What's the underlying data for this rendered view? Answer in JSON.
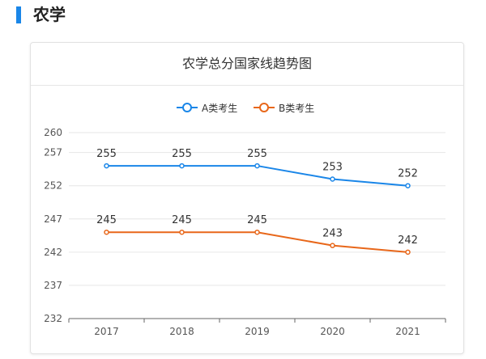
{
  "section": {
    "title": "农学",
    "accent_color": "#1a86e8"
  },
  "chart_data": {
    "type": "line",
    "title": "农学总分国家线趋势图",
    "categories": [
      "2017",
      "2018",
      "2019",
      "2020",
      "2021"
    ],
    "series": [
      {
        "name": "A类考生",
        "values": [
          255,
          255,
          255,
          253,
          252
        ],
        "color": "#1a86e8"
      },
      {
        "name": "B类考生",
        "values": [
          245,
          245,
          245,
          243,
          242
        ],
        "color": "#e8671a"
      }
    ],
    "yticks": [
      232,
      237,
      242,
      247,
      252,
      257,
      260
    ],
    "ylim": [
      232,
      260
    ],
    "grid": true,
    "legend_position": "top-center",
    "data_labels": true
  }
}
